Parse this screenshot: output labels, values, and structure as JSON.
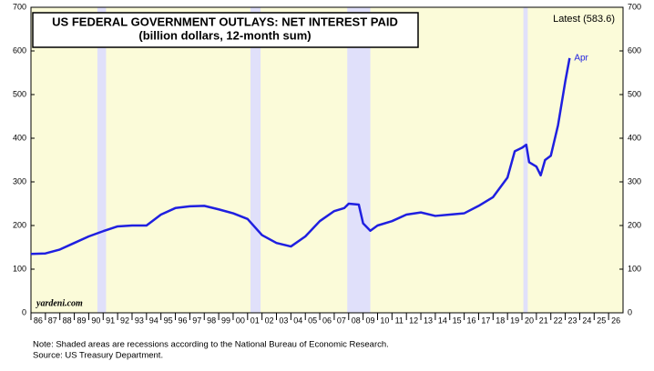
{
  "chart_data": {
    "type": "line",
    "title": "US FEDERAL GOVERNMENT OUTLAYS: NET INTEREST PAID",
    "subtitle": "(billion dollars, 12-month sum)",
    "latest_label": "Latest (583.6)",
    "end_label": "Apr",
    "source_brand": "yardeni.com",
    "notes": [
      "Note: Shaded areas are recessions according to the National Bureau of Economic Research.",
      "Source: US Treasury Department."
    ],
    "x": [
      1986,
      1987,
      1988,
      1989,
      1990,
      1991,
      1992,
      1993,
      1994,
      1995,
      1996,
      1997,
      1998,
      1999,
      2000,
      2001,
      2002,
      2003,
      2004,
      2005,
      2006,
      2007,
      2007.7,
      2008,
      2008.7,
      2009,
      2009.5,
      2010,
      2011,
      2012,
      2013,
      2014,
      2015,
      2016,
      2017,
      2018,
      2019,
      2019.5,
      2020,
      2020.3,
      2020.5,
      2021,
      2021.3,
      2021.6,
      2022,
      2022.5,
      2023,
      2023.3
    ],
    "series": [
      {
        "name": "Net interest paid",
        "color": "#1f1fe0",
        "values": [
          135,
          136,
          145,
          160,
          175,
          187,
          198,
          200,
          200,
          225,
          240,
          244,
          245,
          237,
          228,
          215,
          178,
          160,
          152,
          175,
          210,
          233,
          240,
          250,
          248,
          205,
          188,
          200,
          210,
          225,
          230,
          222,
          225,
          228,
          245,
          265,
          310,
          370,
          378,
          385,
          345,
          335,
          315,
          350,
          360,
          430,
          530,
          583.6
        ]
      }
    ],
    "recessions": [
      [
        1990.6,
        1991.2
      ],
      [
        2001.2,
        2001.9
      ],
      [
        2007.9,
        2009.5
      ],
      [
        2020.1,
        2020.4
      ]
    ],
    "recession_color": "#e0e0fa",
    "background": "#fbfbd9",
    "xlim": [
      1986,
      2027
    ],
    "xticks": [
      {
        "value": 1986,
        "label": "86"
      },
      {
        "value": 1987,
        "label": "87"
      },
      {
        "value": 1988,
        "label": "88"
      },
      {
        "value": 1989,
        "label": "89"
      },
      {
        "value": 1990,
        "label": "90"
      },
      {
        "value": 1991,
        "label": "91"
      },
      {
        "value": 1992,
        "label": "92"
      },
      {
        "value": 1993,
        "label": "93"
      },
      {
        "value": 1994,
        "label": "94"
      },
      {
        "value": 1995,
        "label": "95"
      },
      {
        "value": 1996,
        "label": "96"
      },
      {
        "value": 1997,
        "label": "97"
      },
      {
        "value": 1998,
        "label": "98"
      },
      {
        "value": 1999,
        "label": "99"
      },
      {
        "value": 2000,
        "label": "00"
      },
      {
        "value": 2001,
        "label": "01"
      },
      {
        "value": 2002,
        "label": "02"
      },
      {
        "value": 2003,
        "label": "03"
      },
      {
        "value": 2004,
        "label": "04"
      },
      {
        "value": 2005,
        "label": "05"
      },
      {
        "value": 2006,
        "label": "06"
      },
      {
        "value": 2007,
        "label": "07"
      },
      {
        "value": 2008,
        "label": "08"
      },
      {
        "value": 2009,
        "label": "09"
      },
      {
        "value": 2010,
        "label": "10"
      },
      {
        "value": 2011,
        "label": "11"
      },
      {
        "value": 2012,
        "label": "12"
      },
      {
        "value": 2013,
        "label": "13"
      },
      {
        "value": 2014,
        "label": "14"
      },
      {
        "value": 2015,
        "label": "15"
      },
      {
        "value": 2016,
        "label": "16"
      },
      {
        "value": 2017,
        "label": "17"
      },
      {
        "value": 2018,
        "label": "18"
      },
      {
        "value": 2019,
        "label": "19"
      },
      {
        "value": 2020,
        "label": "20"
      },
      {
        "value": 2021,
        "label": "21"
      },
      {
        "value": 2022,
        "label": "22"
      },
      {
        "value": 2023,
        "label": "23"
      },
      {
        "value": 2024,
        "label": "24"
      },
      {
        "value": 2025,
        "label": "25"
      },
      {
        "value": 2026,
        "label": "26"
      }
    ],
    "ylim": [
      0,
      700
    ],
    "yticks": [
      0,
      100,
      200,
      300,
      400,
      500,
      600,
      700
    ]
  }
}
